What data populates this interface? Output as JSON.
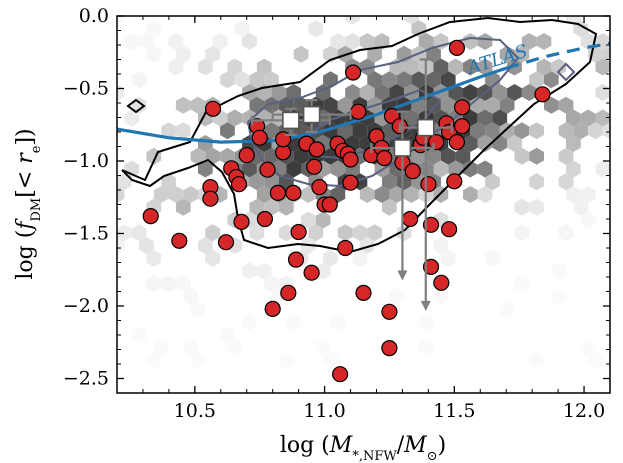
{
  "chart_data": {
    "type": "scatter",
    "xlabel": "log (M*,NFW/M⊙)",
    "ylabel": "log (fDM[< re])",
    "xlim": [
      10.2,
      12.1
    ],
    "ylim": [
      -2.6,
      0.0
    ],
    "x_ticks": [
      10.5,
      11.0,
      11.5,
      12.0
    ],
    "x_tick_labels": [
      "10.5",
      "11.0",
      "11.5",
      "12.0"
    ],
    "y_ticks": [
      0.0,
      -0.5,
      -1.0,
      -1.5,
      -2.0,
      -2.5
    ],
    "y_tick_labels": [
      "0.0",
      "−0.5",
      "−1.0",
      "−1.5",
      "−2.0",
      "−2.5"
    ],
    "colors": {
      "points": "#d62728",
      "trend": "#1f77b4",
      "contour_outer": "#000000",
      "contour_inner": "#5a6080",
      "squares": "#ffffff",
      "errorbars": "#7f7f7f"
    },
    "annotations": [
      {
        "text": "ATLAS3D"
      }
    ],
    "series": [
      {
        "kind": "red_circles",
        "points": [
          [
            10.33,
            -1.38
          ],
          [
            10.44,
            -1.55
          ],
          [
            10.56,
            -1.18
          ],
          [
            10.56,
            -1.26
          ],
          [
            10.57,
            -0.64
          ],
          [
            10.62,
            -1.56
          ],
          [
            10.64,
            -1.05
          ],
          [
            10.66,
            -1.11
          ],
          [
            10.67,
            -1.16
          ],
          [
            10.68,
            -1.42
          ],
          [
            10.7,
            -0.96
          ],
          [
            10.74,
            -0.76
          ],
          [
            10.75,
            -0.84
          ],
          [
            10.77,
            -1.4
          ],
          [
            10.78,
            -1.06
          ],
          [
            10.8,
            -2.02
          ],
          [
            10.82,
            -1.22
          ],
          [
            10.84,
            -0.94
          ],
          [
            10.84,
            -0.85
          ],
          [
            10.86,
            -1.91
          ],
          [
            10.88,
            -1.22
          ],
          [
            10.89,
            -1.68
          ],
          [
            10.9,
            -1.49
          ],
          [
            10.93,
            -0.88
          ],
          [
            10.95,
            -1.77
          ],
          [
            10.96,
            -1.04
          ],
          [
            10.97,
            -0.92
          ],
          [
            10.98,
            -1.18
          ],
          [
            11.0,
            -1.3
          ],
          [
            11.02,
            -1.3
          ],
          [
            11.05,
            -0.88
          ],
          [
            11.06,
            -2.47
          ],
          [
            11.07,
            -0.93
          ],
          [
            11.08,
            -1.6
          ],
          [
            11.09,
            -0.95
          ],
          [
            11.1,
            -1.15
          ],
          [
            11.1,
            -0.99
          ],
          [
            11.11,
            -0.39
          ],
          [
            11.13,
            -0.66
          ],
          [
            11.15,
            -1.91
          ],
          [
            11.18,
            -0.96
          ],
          [
            11.2,
            -0.83
          ],
          [
            11.22,
            -0.91
          ],
          [
            11.23,
            -0.98
          ],
          [
            11.25,
            -2.29
          ],
          [
            11.25,
            -2.04
          ],
          [
            11.26,
            -0.69
          ],
          [
            11.29,
            -0.76
          ],
          [
            11.3,
            -1.01
          ],
          [
            11.33,
            -1.4
          ],
          [
            11.34,
            -1.07
          ],
          [
            11.37,
            -0.89
          ],
          [
            11.38,
            -0.84
          ],
          [
            11.4,
            -1.16
          ],
          [
            11.41,
            -1.44
          ],
          [
            11.41,
            -1.73
          ],
          [
            11.43,
            -0.87
          ],
          [
            11.45,
            -1.84
          ],
          [
            11.47,
            -0.74
          ],
          [
            11.48,
            -0.8
          ],
          [
            11.48,
            -1.47
          ],
          [
            11.5,
            -1.14
          ],
          [
            11.51,
            -0.22
          ],
          [
            11.51,
            -0.87
          ],
          [
            11.53,
            -0.63
          ],
          [
            11.53,
            -0.76
          ],
          [
            11.84,
            -0.54
          ]
        ]
      },
      {
        "kind": "binned_squares",
        "points": [
          {
            "x": 10.87,
            "y": -0.72,
            "xerr": 0.15,
            "yerr_low": 0.1,
            "yerr_high": 0.08
          },
          {
            "x": 10.95,
            "y": -0.68,
            "xerr": 0.15,
            "yerr_low": 0.12,
            "yerr_high": 0.1
          },
          {
            "x": 11.3,
            "y": -0.91,
            "xerr": 0.12,
            "yerr_low": 0.9,
            "yerr_high": 0.25
          },
          {
            "x": 11.39,
            "y": -0.77,
            "xerr": 0.1,
            "yerr_low": 1.25,
            "yerr_high": 0.47
          }
        ]
      },
      {
        "kind": "trend_line",
        "name": "ATLAS3D",
        "solid_x": [
          10.2,
          10.4,
          10.6,
          10.8,
          10.9,
          11.0,
          11.2,
          11.4,
          11.6,
          11.7
        ],
        "solid_y": [
          -0.78,
          -0.84,
          -0.87,
          -0.86,
          -0.83,
          -0.79,
          -0.68,
          -0.55,
          -0.42,
          -0.36
        ],
        "dashed_x": [
          11.7,
          11.85,
          12.0,
          12.1
        ],
        "dashed_y": [
          -0.36,
          -0.28,
          -0.22,
          -0.19
        ]
      }
    ]
  }
}
